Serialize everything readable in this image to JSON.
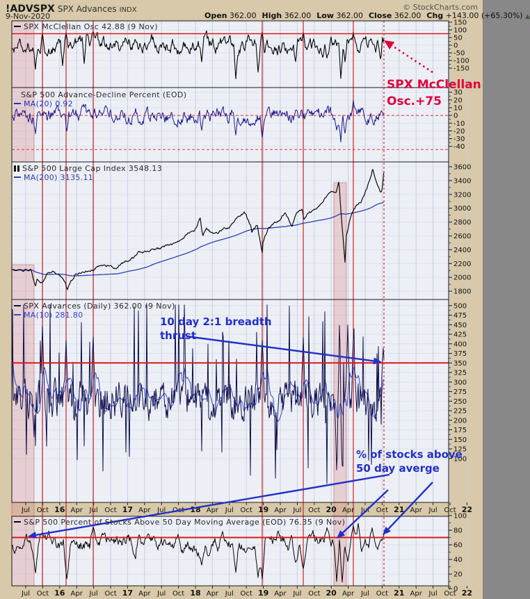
{
  "header": {
    "symbol": "!ADVSPX",
    "name": "SPX Advances",
    "exchange": "INDX",
    "copyright": "© StockCharts.com",
    "date": "9-Nov-2020",
    "quote": [
      {
        "label": "Open",
        "value": "362.00"
      },
      {
        "label": "High",
        "value": "362.00"
      },
      {
        "label": "Low",
        "value": "362.00"
      },
      {
        "label": "Close",
        "value": "362.00"
      },
      {
        "label": "Chg",
        "value": "+143.00 (+65.30%)"
      }
    ],
    "direction_symbol": "▲"
  },
  "annotations": {
    "mcclellan": {
      "line1": "SPX McClellan",
      "line2": "Osc.+75",
      "color": "#e0003c"
    },
    "breadth": {
      "line1": "10 day 2:1 breadth",
      "line2": "thrust",
      "color": "#2230c8"
    },
    "pct": {
      "line1": "% of stocks above",
      "line2": "50 day averge",
      "color": "#2230c8"
    }
  },
  "x_axis": {
    "labels": [
      "Jul",
      "Oct",
      "16",
      "Apr",
      "Jul",
      "Oct",
      "17",
      "Apr",
      "Jul",
      "Oct",
      "18",
      "Apr",
      "Jul",
      "Oct",
      "19",
      "Apr",
      "Jul",
      "Oct",
      "20",
      "Apr",
      "Jul",
      "Oct",
      "21",
      "Apr",
      "Jul",
      "Oct",
      "22"
    ]
  },
  "signals": {
    "vline_dates": [
      "Oct 2015",
      "Feb 2016",
      "Jul 2016",
      "Dec 2018",
      "Aug 2019",
      "May 2020"
    ],
    "current_date_line": "9-Nov-2020",
    "shaded_periods": [
      "Jul 2015 – Oct 2015",
      "Feb 2020 – Apr 2020"
    ],
    "signal_color": "#cc2222",
    "band_color": "#d98c8c"
  },
  "chart_data": [
    {
      "id": "mcclellan",
      "type": "line",
      "title": "SPX McClellan Osc 42.88 (9 Nov)",
      "series": [
        {
          "name": "SPX McClellan Osc",
          "color": "#050505",
          "last_value": 42.88,
          "last_date": "9 Nov"
        }
      ],
      "ylim": [
        -277,
        159
      ],
      "yticks": [
        150,
        100,
        50,
        0,
        -50,
        -100,
        -150
      ],
      "overbought_line": 75
    },
    {
      "id": "ad_percent",
      "type": "line",
      "title": "S&P 500 Advance-Decline Percent (EOD)",
      "series": [
        {
          "name": "S&P 500 Advance-Decline Percent",
          "color": "#16168c"
        },
        {
          "name": "MA(20)",
          "value": 0.92,
          "color": "#2233bb"
        }
      ],
      "ylim": [
        -60,
        36
      ],
      "yticks": [
        30,
        20,
        10,
        0,
        -10,
        -20,
        -30,
        -40
      ],
      "zero_line": 0
    },
    {
      "id": "spx",
      "type": "line",
      "title": "S&P 500 Large Cap Index 3548.13",
      "series": [
        {
          "name": "S&P 500 Large Cap Index",
          "color": "#0a0a0a",
          "last_value": 3548.13
        },
        {
          "name": "MA(200)",
          "value": 3135.11,
          "color": "#2a3fb0"
        }
      ],
      "ylim": [
        1680,
        3670
      ],
      "yticks": [
        3600,
        3400,
        3200,
        3000,
        2800,
        2600,
        2400,
        2200,
        2000,
        1800
      ],
      "monthly_close_approx": {
        "start": "Jul-2015",
        "values": [
          2104,
          1972,
          1920,
          2079,
          2080,
          2044,
          1940,
          1932,
          2060,
          2065,
          2097,
          2099,
          2174,
          2171,
          2168,
          2126,
          2199,
          2239,
          2279,
          2364,
          2363,
          2384,
          2412,
          2423,
          2470,
          2472,
          2519,
          2575,
          2648,
          2674,
          2824,
          2714,
          2641,
          2648,
          2705,
          2718,
          2816,
          2902,
          2914,
          2712,
          2760,
          2507,
          2704,
          2784,
          2834,
          2946,
          2752,
          2942,
          2980,
          2926,
          2977,
          3038,
          3141,
          3231,
          3226,
          2954,
          2585,
          2912,
          3044,
          3100,
          3271,
          3500,
          3363,
          3270,
          3550
        ]
      }
    },
    {
      "id": "advances",
      "type": "line",
      "title": "SPX Advances (Daily) 362.00 (9 Nov)",
      "series": [
        {
          "name": "SPX Advances",
          "color": "#10104a",
          "last_value": 362.0
        },
        {
          "name": "MA(10)",
          "value": 281.8,
          "color": "#3347cc"
        }
      ],
      "ylim": [
        -15,
        516
      ],
      "yticks": [
        500,
        475,
        450,
        425,
        400,
        375,
        350,
        325,
        300,
        275,
        250,
        225,
        200,
        175,
        150,
        125,
        100
      ],
      "threshold_line": 350
    },
    {
      "id": "pct_above_50ma",
      "type": "line",
      "title": "S&P 500 Percent of Stocks Above 50 Day Moving Average (EOD) 76.35 (9 Nov)",
      "series": [
        {
          "name": "S&P 500 Percent of Stocks Above 50 Day Moving Average",
          "color": "#050505",
          "last_value": 76.35
        }
      ],
      "ylim": [
        4,
        99
      ],
      "yticks": [
        100,
        80,
        60,
        40,
        20,
        0
      ],
      "threshold_line": 70
    }
  ]
}
